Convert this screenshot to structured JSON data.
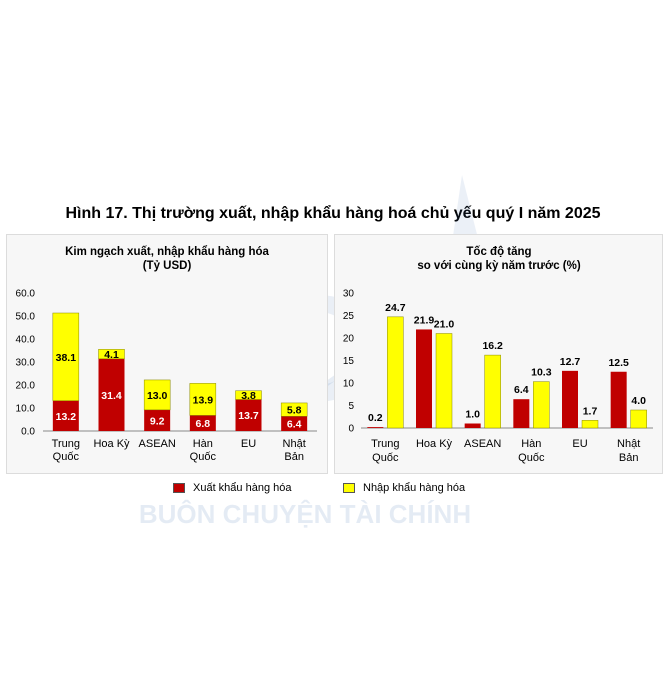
{
  "figure": {
    "title": "Hình 17. Thị trường xuất, nhập khẩu hàng hoá chủ yếu quý I năm 2025"
  },
  "watermark": {
    "text": "BUÔN CHUYỆN TÀI CHÍNH",
    "logo_letters": "BC",
    "color": "#3a6fb0"
  },
  "colors": {
    "export": "#c00000",
    "import": "#ffff00",
    "panel_bg": "#f7f7f7",
    "axis": "#888888"
  },
  "legend": {
    "export_label": "Xuất khẩu hàng hóa",
    "import_label": "Nhập khẩu hàng hóa"
  },
  "chart_data": [
    {
      "type": "bar",
      "stacked": true,
      "title": "Kim ngạch xuất, nhập khẩu hàng hóa",
      "subtitle": "(Tỷ USD)",
      "categories": [
        [
          "Trung",
          "Quốc"
        ],
        [
          "Hoa Kỳ"
        ],
        [
          "ASEAN"
        ],
        [
          "Hàn",
          "Quốc"
        ],
        [
          "EU"
        ],
        [
          "Nhật",
          "Bản"
        ]
      ],
      "series": [
        {
          "name": "Xuất khẩu hàng hóa",
          "values": [
            13.2,
            31.4,
            9.2,
            6.8,
            13.7,
            6.4
          ]
        },
        {
          "name": "Nhập khẩu hàng hóa",
          "values": [
            38.1,
            4.1,
            13.0,
            13.9,
            3.8,
            5.8
          ]
        }
      ],
      "ylim": [
        0,
        60
      ],
      "yticks": [
        "0.0",
        "10.0",
        "20.0",
        "30.0",
        "40.0",
        "50.0",
        "60.0"
      ],
      "grid": false
    },
    {
      "type": "bar",
      "stacked": false,
      "title": "Tốc độ tăng",
      "subtitle": "so với cùng kỳ năm trước (%)",
      "categories": [
        [
          "Trung",
          "Quốc"
        ],
        [
          "Hoa Kỳ"
        ],
        [
          "ASEAN"
        ],
        [
          "Hàn",
          "Quốc"
        ],
        [
          "EU"
        ],
        [
          "Nhật",
          "Bản"
        ]
      ],
      "series": [
        {
          "name": "Xuất khẩu hàng hóa",
          "values": [
            0.2,
            21.9,
            1.0,
            6.4,
            12.7,
            12.5
          ]
        },
        {
          "name": "Nhập khẩu hàng hóa",
          "values": [
            24.7,
            21.0,
            16.2,
            10.3,
            1.7,
            4.0
          ]
        }
      ],
      "value_labels": [
        [
          "0.2",
          "21.9",
          "1.0",
          "6.4",
          "12.7",
          "12.5"
        ],
        [
          "24.7",
          "21.0",
          "16.2",
          "10.3",
          "1.7",
          "4.0"
        ]
      ],
      "ylim": [
        0,
        30
      ],
      "yticks": [
        "0",
        "5",
        "10",
        "15",
        "20",
        "25",
        "30"
      ],
      "grid": false
    }
  ]
}
